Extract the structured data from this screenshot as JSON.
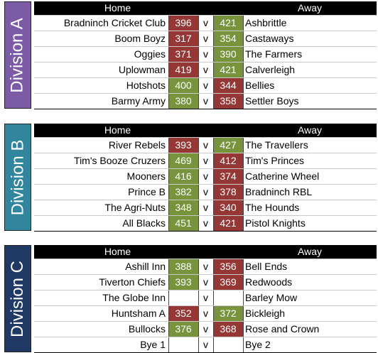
{
  "header": {
    "home": "Home",
    "away": "Away"
  },
  "colors": {
    "win": "#77933c",
    "loss": "#953735",
    "divA": "#7b5aa6",
    "divB": "#31859c",
    "divC": "#1f3864"
  },
  "vs_label": "v",
  "divisions": [
    {
      "label": "Division A",
      "color": "#7b5aa6",
      "matches": [
        {
          "home": "Bradninch Cricket Club",
          "home_score": "396",
          "away_score": "421",
          "away": "Ashbrittle",
          "result": "away"
        },
        {
          "home": "Boom Boyz",
          "home_score": "317",
          "away_score": "354",
          "away": "Castaways",
          "result": "away"
        },
        {
          "home": "Oggies",
          "home_score": "371",
          "away_score": "390",
          "away": "The Farmers",
          "result": "away"
        },
        {
          "home": "Uplowman",
          "home_score": "419",
          "away_score": "421",
          "away": "Calverleigh",
          "result": "away"
        },
        {
          "home": "Hotshots",
          "home_score": "400",
          "away_score": "344",
          "away": "Bellies",
          "result": "home"
        },
        {
          "home": "Barmy Army",
          "home_score": "380",
          "away_score": "358",
          "away": "Settler Boys",
          "result": "home"
        }
      ]
    },
    {
      "label": "Division B",
      "color": "#31859c",
      "matches": [
        {
          "home": "River Rebels",
          "home_score": "393",
          "away_score": "427",
          "away": "The Travellers",
          "result": "away"
        },
        {
          "home": "Tim's Booze Cruzers",
          "home_score": "469",
          "away_score": "412",
          "away": "Tim's Princes",
          "result": "home"
        },
        {
          "home": "Mooners",
          "home_score": "416",
          "away_score": "374",
          "away": "Catherine Wheel",
          "result": "home"
        },
        {
          "home": "Prince B",
          "home_score": "382",
          "away_score": "378",
          "away": "Bradninch RBL",
          "result": "home"
        },
        {
          "home": "The Agri-Nuts",
          "home_score": "348",
          "away_score": "340",
          "away": "The Hounds",
          "result": "home"
        },
        {
          "home": "All Blacks",
          "home_score": "451",
          "away_score": "421",
          "away": "Pistol Knights",
          "result": "home"
        }
      ]
    },
    {
      "label": "Division C",
      "color": "#1f3864",
      "matches": [
        {
          "home": "Ashill Inn",
          "home_score": "388",
          "away_score": "356",
          "away": "Bell Ends",
          "result": "home"
        },
        {
          "home": "Tiverton Chiefs",
          "home_score": "393",
          "away_score": "369",
          "away": "Redwoods",
          "result": "home"
        },
        {
          "home": "The Globe Inn",
          "home_score": "",
          "away_score": "",
          "away": "Barley Mow",
          "result": "none"
        },
        {
          "home": "Huntsham A",
          "home_score": "352",
          "away_score": "372",
          "away": "Bickleigh",
          "result": "away"
        },
        {
          "home": "Bullocks",
          "home_score": "376",
          "away_score": "368",
          "away": "Rose and Crown",
          "result": "home"
        },
        {
          "home": "Bye 1",
          "home_score": "",
          "away_score": "",
          "away": "Bye 2",
          "result": "none"
        }
      ]
    }
  ]
}
